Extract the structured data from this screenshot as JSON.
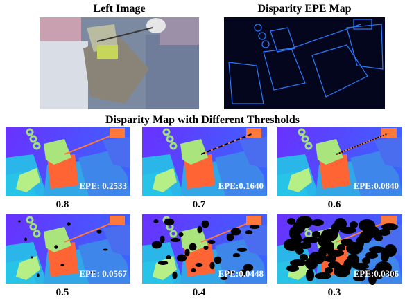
{
  "figure": {
    "left_image": {
      "title": "Left Image"
    },
    "epe_map": {
      "title": "Disparity EPE Map"
    },
    "thresholds": {
      "title": "Disparity Map with Different Thresholds",
      "panels": [
        {
          "threshold": "0.8",
          "epe": "EPE: 0.2533"
        },
        {
          "threshold": "0.7",
          "epe": "EPE:0.1640"
        },
        {
          "threshold": "0.6",
          "epe": "EPE:0.0840"
        },
        {
          "threshold": "0.5",
          "epe": "EPE: 0.0567"
        },
        {
          "threshold": "0.4",
          "epe": "EPE:0.0448"
        },
        {
          "threshold": "0.3",
          "epe": "EPE:0.0306"
        }
      ]
    }
  }
}
